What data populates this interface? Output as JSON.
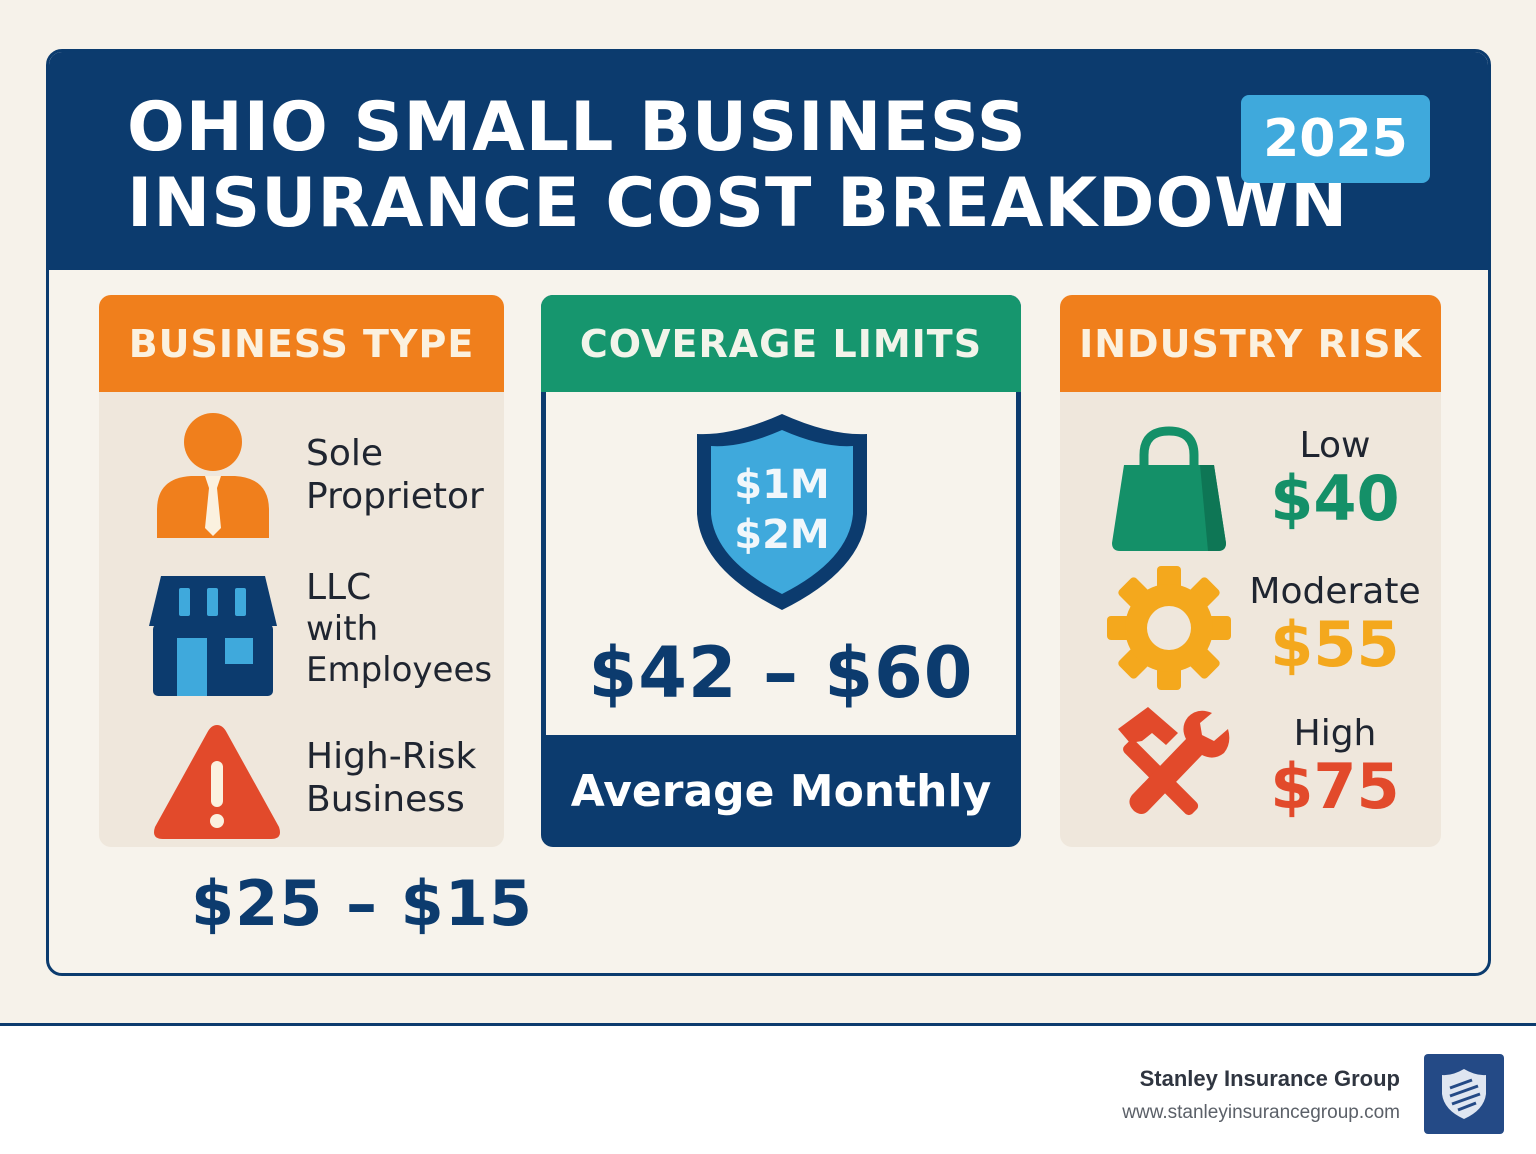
{
  "header": {
    "title_line1": "OHIO SMALL BUSINESS",
    "title_line2": "INSURANCE COST BREAKDOWN",
    "year": "2025"
  },
  "business_type": {
    "heading": "BUSINESS TYPE",
    "items": [
      {
        "icon": "person-icon",
        "line1": "Sole",
        "line2": "Proprietor",
        "line3": ""
      },
      {
        "icon": "storefront-icon",
        "line1": "LLC",
        "line2": "with",
        "line3": "Employees"
      },
      {
        "icon": "warning-icon",
        "line1": "High-Risk",
        "line2": "Business",
        "line3": ""
      }
    ],
    "range": "$25 – $15"
  },
  "coverage_limits": {
    "heading": "COVERAGE LIMITS",
    "shield_line1": "$1M",
    "shield_line2": "$2M",
    "price_range": "$42 – $60",
    "footer": "Average Monthly"
  },
  "industry_risk": {
    "heading": "INDUSTRY RISK",
    "levels": [
      {
        "icon": "shopping-bag-icon",
        "name": "Low",
        "price": "$40",
        "color": "#149068"
      },
      {
        "icon": "gear-icon",
        "name": "Moderate",
        "price": "$55",
        "color": "#f4a81d"
      },
      {
        "icon": "tools-icon",
        "name": "High",
        "price": "$75",
        "color": "#e24a2b"
      }
    ]
  },
  "footer": {
    "company": "Stanley Insurance Group",
    "url": "www.stanleyinsurancegroup.com",
    "logo_icon": "shield-logo-icon"
  },
  "colors": {
    "navy": "#0c3b6e",
    "orange": "#f07f1c",
    "green": "#16966e",
    "light_blue": "#3fa9dc",
    "background": "#f6f2ea"
  }
}
